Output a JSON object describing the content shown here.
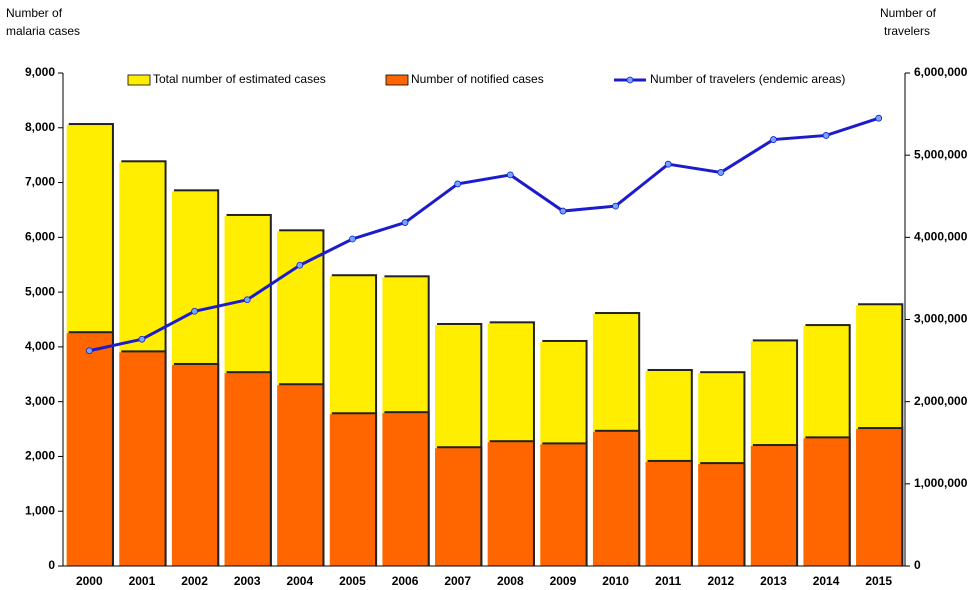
{
  "chart_data": {
    "type": "bar",
    "ylabel": [
      "Number of",
      "malaria cases"
    ],
    "y2label": [
      "Number of",
      "travelers"
    ],
    "categories": [
      "2000",
      "2001",
      "2002",
      "2003",
      "2004",
      "2005",
      "2006",
      "2007",
      "2008",
      "2009",
      "2010",
      "2011",
      "2012",
      "2013",
      "2014",
      "2015"
    ],
    "series": [
      {
        "name": "Total number of estimated cases",
        "color": "#ffee00",
        "values": [
          8050,
          7370,
          6840,
          6390,
          6110,
          5290,
          5270,
          4400,
          4430,
          4090,
          4600,
          3560,
          3520,
          4100,
          4380,
          4760
        ]
      },
      {
        "name": "Number of notified cases",
        "color": "#ff6600",
        "values": [
          4250,
          3900,
          3670,
          3520,
          3300,
          2770,
          2790,
          2150,
          2260,
          2220,
          2450,
          1900,
          1860,
          2190,
          2330,
          2500
        ]
      },
      {
        "name": "Number of travelers (endemic areas)",
        "color": "#1c1ccc",
        "type": "line",
        "axis": "y2",
        "values": [
          2620000,
          2760000,
          3100000,
          3240000,
          3660000,
          3980000,
          4180000,
          4650000,
          4760000,
          4320000,
          4380000,
          4890000,
          4790000,
          5190000,
          5240000,
          5450000
        ]
      }
    ],
    "ylim": [
      0,
      9000
    ],
    "yticks": [
      0,
      {
        "value": 1000,
        "label": "1,000"
      },
      {
        "value": 2000,
        "label": "2,000"
      },
      {
        "value": 3000,
        "label": "3,000"
      },
      {
        "value": 4000,
        "label": "4,000"
      },
      {
        "value": 5000,
        "label": "5,000"
      },
      {
        "value": 6000,
        "label": "6,000"
      },
      {
        "value": 7000,
        "label": "7,000"
      },
      {
        "value": 8000,
        "label": "8,000"
      },
      {
        "value": 9000,
        "label": "9,000"
      }
    ],
    "y2lim": [
      0,
      6000000
    ],
    "y2ticks": [
      0,
      {
        "value": 1000000,
        "label": "1,000,000"
      },
      {
        "value": 2000000,
        "label": "2,000,000"
      },
      {
        "value": 3000000,
        "label": "3,000,000"
      },
      {
        "value": 4000000,
        "label": "4,000,000"
      },
      {
        "value": 5000000,
        "label": "5,000,000"
      },
      {
        "value": 6000000,
        "label": "6,000,000"
      }
    ],
    "grid": false
  }
}
